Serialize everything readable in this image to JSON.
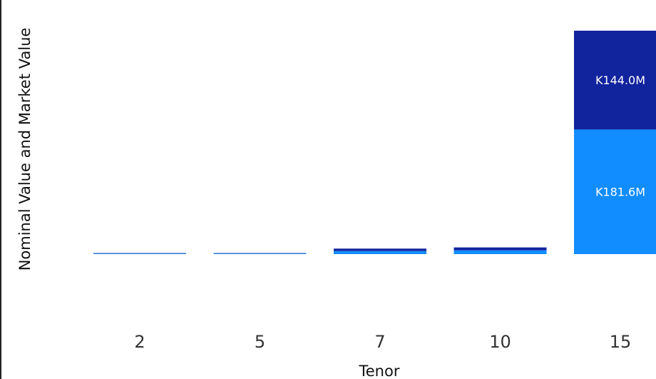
{
  "chart_data": {
    "type": "bar",
    "stacked": true,
    "xlabel": "Tenor",
    "ylabel": "Nominal Value and Market Value",
    "categories": [
      "2",
      "5",
      "7",
      "10",
      "15"
    ],
    "series": [
      {
        "color": "#118dff",
        "values": [
          0.9,
          0.9,
          4.5,
          5.5,
          181.6
        ],
        "labels": [
          "",
          "",
          "",
          "",
          "K181.6M"
        ]
      },
      {
        "color": "#12239e",
        "values": [
          0.6,
          0.6,
          3.5,
          4.2,
          144.0
        ],
        "labels": [
          "",
          "",
          "",
          "",
          "K144.0M"
        ]
      }
    ],
    "grid": false,
    "legend": "none"
  }
}
